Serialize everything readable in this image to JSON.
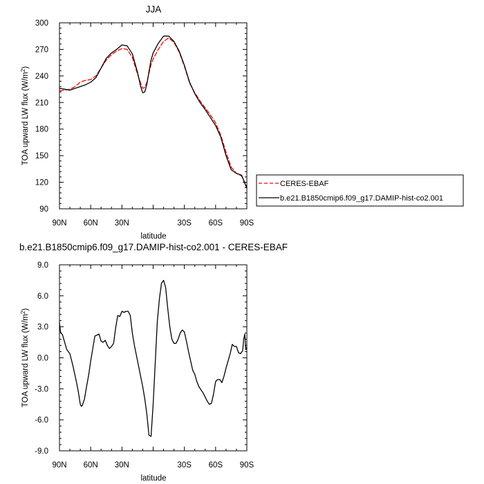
{
  "chart_data": [
    {
      "type": "line",
      "title": "JJA",
      "xlabel": "latitude",
      "ylabel": "TOA upward LW flux (W/m",
      "ylabel_sup": "2",
      "ylabel_close": ")",
      "xlim": [
        90,
        -90
      ],
      "ylim": [
        90,
        300
      ],
      "x_ticks": [
        90,
        60,
        30,
        0,
        -30,
        -60,
        -90
      ],
      "x_tick_labels": [
        "90N",
        "60N",
        "30N",
        "",
        "30S",
        "60S",
        "90S"
      ],
      "y_ticks": [
        90,
        120,
        150,
        180,
        210,
        240,
        270,
        300
      ],
      "y_tick_labels": [
        "90",
        "120",
        "150",
        "180",
        "210",
        "240",
        "270",
        "300"
      ],
      "legend_position": "outside-right",
      "series": [
        {
          "name": "CERES-EBAF",
          "color": "#ff0000",
          "dash": "dashed",
          "x": [
            90,
            85,
            80,
            75,
            70,
            65,
            60,
            55,
            50,
            45,
            40,
            35,
            30,
            25,
            20,
            15,
            12,
            10,
            8,
            6,
            4,
            2,
            0,
            -5,
            -10,
            -15,
            -20,
            -25,
            -30,
            -35,
            -40,
            -45,
            -50,
            -55,
            -60,
            -65,
            -70,
            -75,
            -80,
            -85,
            -90
          ],
          "values": [
            223,
            224,
            225,
            228,
            233,
            235,
            236,
            240,
            249,
            258,
            264,
            268,
            271,
            270,
            261,
            242,
            232,
            226,
            227,
            233,
            243,
            253,
            259,
            270,
            279,
            283,
            278,
            267,
            251,
            232,
            221,
            212,
            204,
            196,
            187,
            173,
            154,
            137,
            130,
            127,
            115
          ]
        },
        {
          "name": "b.e21.B1850cmip6.f09_g17.DAMIP-hist-co2.001",
          "color": "#000000",
          "dash": "solid",
          "x": [
            90,
            85,
            80,
            75,
            70,
            65,
            60,
            55,
            50,
            45,
            40,
            35,
            30,
            25,
            20,
            15,
            12,
            10,
            8,
            6,
            4,
            2,
            0,
            -5,
            -10,
            -15,
            -20,
            -25,
            -30,
            -35,
            -40,
            -45,
            -50,
            -55,
            -60,
            -65,
            -70,
            -75,
            -80,
            -85,
            -90
          ],
          "values": [
            226,
            225,
            224,
            226,
            228,
            230,
            233,
            238,
            249,
            260,
            266,
            270,
            275,
            274,
            265,
            244,
            228,
            221,
            222,
            231,
            245,
            258,
            266,
            277,
            285,
            285,
            279,
            268,
            252,
            233,
            220,
            210,
            202,
            193,
            184,
            171,
            150,
            134,
            130,
            128,
            113
          ]
        }
      ]
    },
    {
      "type": "line",
      "title": "b.e21.B1850cmip6.f09_g17.DAMIP-hist-co2.001 - CERES-EBAF",
      "xlabel": "latitude",
      "ylabel": "TOA upward LW flux (W/m",
      "ylabel_sup": "2",
      "ylabel_close": ")",
      "xlim": [
        90,
        -90
      ],
      "ylim": [
        -9,
        9
      ],
      "x_ticks": [
        90,
        60,
        30,
        0,
        -30,
        -60,
        -90
      ],
      "x_tick_labels": [
        "90N",
        "60N",
        "30N",
        "",
        "30S",
        "60S",
        "90S"
      ],
      "y_ticks": [
        -9,
        -6,
        -3,
        0,
        3,
        6,
        9
      ],
      "y_tick_labels": [
        "-9.0",
        "-6.0",
        "-3.0",
        "0.0",
        "3.0",
        "6.0",
        "9.0"
      ],
      "series": [
        {
          "name": "",
          "color": "#000000",
          "dash": "solid",
          "x": [
            90,
            89,
            87,
            85,
            83,
            80,
            77,
            74,
            72,
            70,
            69,
            68,
            66,
            64,
            62,
            60,
            58,
            56,
            54,
            52,
            50,
            48,
            46,
            44,
            42,
            40,
            38,
            36,
            34,
            32,
            30,
            28,
            26,
            24,
            22,
            20,
            18,
            16,
            14,
            12,
            10,
            8,
            6,
            4,
            2,
            0,
            -2,
            -4,
            -6,
            -8,
            -10,
            -12,
            -14,
            -16,
            -18,
            -20,
            -22,
            -24,
            -26,
            -28,
            -30,
            -32,
            -34,
            -36,
            -38,
            -40,
            -42,
            -44,
            -46,
            -48,
            -50,
            -52,
            -54,
            -56,
            -58,
            -60,
            -62,
            -64,
            -66,
            -68,
            -70,
            -72,
            -74,
            -76,
            -78,
            -80,
            -82,
            -84,
            -86,
            -87,
            -88,
            -89,
            -90
          ],
          "values": [
            3.4,
            2.5,
            2.2,
            1.5,
            0.8,
            0.4,
            -0.8,
            -2.2,
            -3.2,
            -4.5,
            -4.7,
            -4.6,
            -4.0,
            -2.8,
            -1.7,
            -0.3,
            0.9,
            2.1,
            2.2,
            2.3,
            1.6,
            1.5,
            1.7,
            1.2,
            0.9,
            1.1,
            1.4,
            2.9,
            4.1,
            4.0,
            4.5,
            4.4,
            4.5,
            4.5,
            4.1,
            2.4,
            1.2,
            0.2,
            -0.8,
            -1.8,
            -2.8,
            -4.0,
            -5.5,
            -7.5,
            -7.6,
            -4.5,
            -0.5,
            3.5,
            5.7,
            7.2,
            7.5,
            6.8,
            4.8,
            3.0,
            1.8,
            1.4,
            1.4,
            1.8,
            2.4,
            2.7,
            2.5,
            1.6,
            0.6,
            -0.3,
            -1.2,
            -1.6,
            -2.3,
            -2.8,
            -3.1,
            -3.4,
            -3.8,
            -4.2,
            -4.5,
            -4.4,
            -3.5,
            -2.3,
            -2.1,
            -2.1,
            -2.4,
            -1.8,
            -1.0,
            -0.3,
            0.4,
            1.3,
            1.1,
            1.1,
            0.5,
            0.4,
            0.7,
            1.8,
            2.3,
            0.8,
            1.0
          ]
        }
      ]
    }
  ]
}
